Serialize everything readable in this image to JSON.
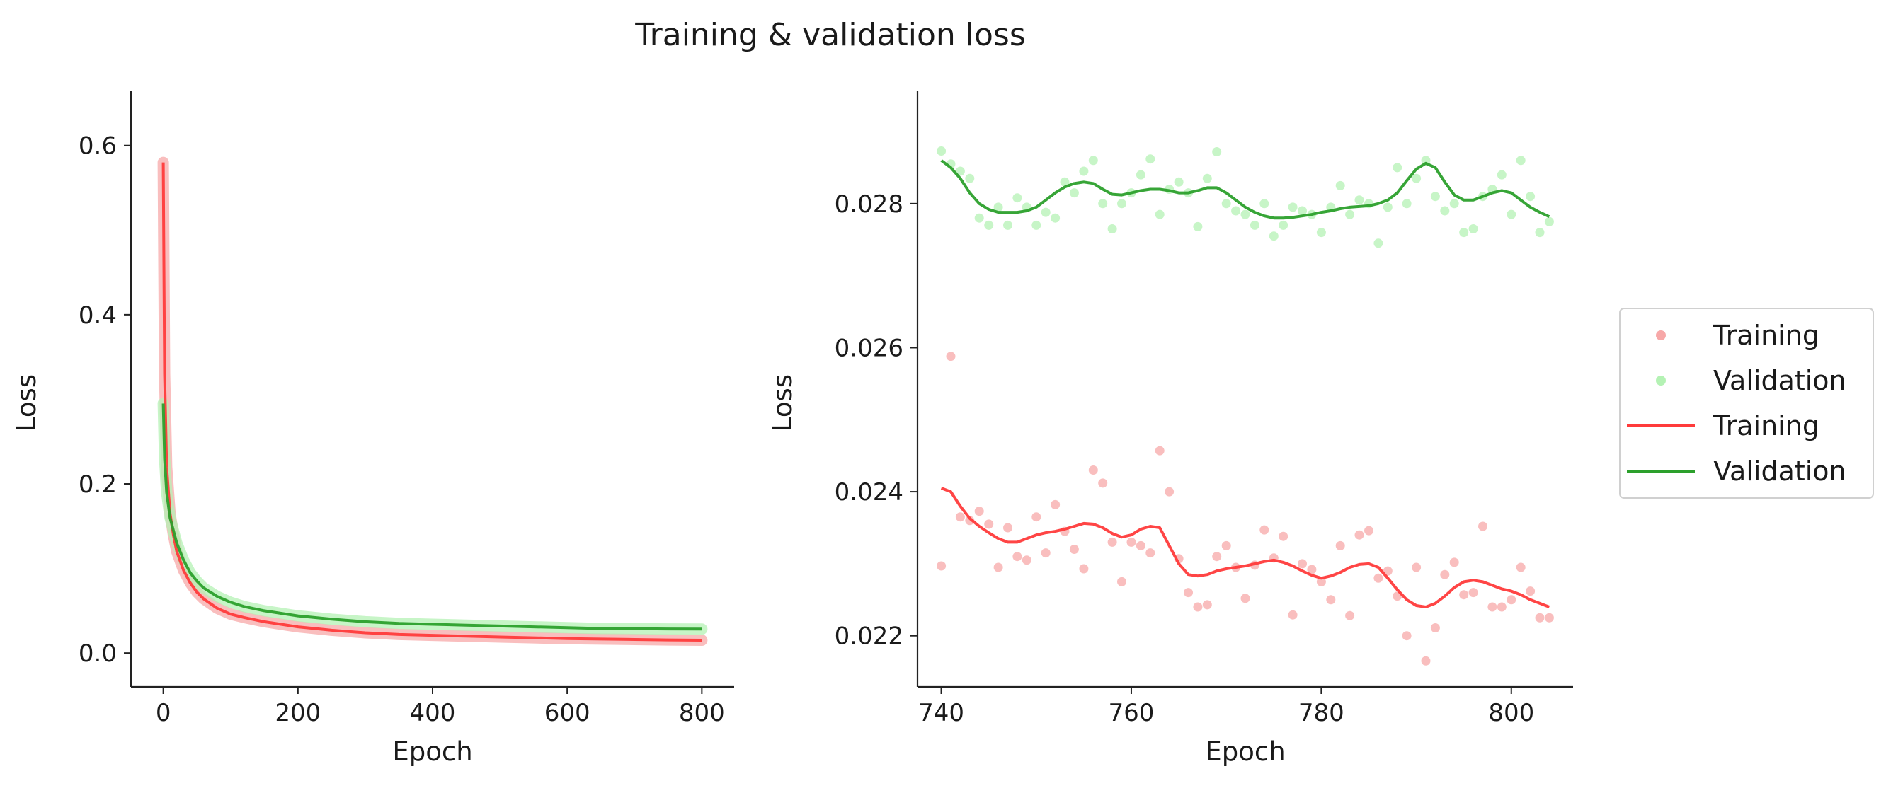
{
  "title": "Training & validation loss",
  "colors": {
    "training_line": "#ff3b3b",
    "validation_line": "#2ca02c",
    "training_marker": "#f7a8a8",
    "validation_marker": "#b4f2b4",
    "axis": "#222222"
  },
  "legend": {
    "entries": [
      {
        "label": "Training",
        "kind": "marker",
        "color_key": "training_marker"
      },
      {
        "label": "Validation",
        "kind": "marker",
        "color_key": "validation_marker"
      },
      {
        "label": "Training",
        "kind": "line",
        "color_key": "training_line"
      },
      {
        "label": "Validation",
        "kind": "line",
        "color_key": "validation_line"
      }
    ]
  },
  "chart_data": [
    {
      "type": "line",
      "title": "",
      "xlabel": "Epoch",
      "ylabel": "Loss",
      "xlim": [
        -48,
        848
      ],
      "ylim": [
        -0.04,
        0.665
      ],
      "xticks": [
        0,
        200,
        400,
        600,
        800
      ],
      "xtick_labels": [
        "0",
        "200",
        "400",
        "600",
        "800"
      ],
      "yticks": [
        0.0,
        0.2,
        0.4,
        0.6
      ],
      "ytick_labels": [
        "0.0",
        "0.2",
        "0.4",
        "0.6"
      ],
      "grid": false,
      "series": [
        {
          "name": "Training",
          "style": "line",
          "x": [
            0,
            2,
            5,
            10,
            15,
            20,
            30,
            40,
            50,
            60,
            80,
            100,
            120,
            150,
            200,
            250,
            300,
            350,
            400,
            450,
            500,
            550,
            600,
            650,
            700,
            750,
            800
          ],
          "y": [
            0.58,
            0.33,
            0.22,
            0.165,
            0.14,
            0.12,
            0.098,
            0.083,
            0.072,
            0.064,
            0.053,
            0.046,
            0.042,
            0.037,
            0.031,
            0.027,
            0.024,
            0.022,
            0.021,
            0.02,
            0.019,
            0.018,
            0.017,
            0.0165,
            0.016,
            0.0155,
            0.0152
          ]
        },
        {
          "name": "Validation",
          "style": "line",
          "x": [
            0,
            2,
            5,
            10,
            15,
            20,
            30,
            40,
            50,
            60,
            80,
            100,
            120,
            150,
            200,
            250,
            300,
            350,
            400,
            450,
            500,
            550,
            600,
            650,
            700,
            750,
            800
          ],
          "y": [
            0.295,
            0.23,
            0.19,
            0.16,
            0.145,
            0.13,
            0.11,
            0.095,
            0.085,
            0.077,
            0.067,
            0.06,
            0.055,
            0.05,
            0.044,
            0.04,
            0.037,
            0.035,
            0.034,
            0.033,
            0.032,
            0.031,
            0.03,
            0.029,
            0.0288,
            0.0285,
            0.0283
          ]
        }
      ]
    },
    {
      "type": "line",
      "title": "",
      "xlabel": "Epoch",
      "ylabel": "Loss",
      "xlim": [
        737.5,
        806.5
      ],
      "ylim": [
        0.02129,
        0.02957
      ],
      "xticks": [
        740,
        760,
        780,
        800
      ],
      "xtick_labels": [
        "740",
        "760",
        "780",
        "800"
      ],
      "yticks": [
        0.022,
        0.024,
        0.026,
        0.028
      ],
      "ytick_labels": [
        "0.022",
        "0.024",
        "0.026",
        "0.028"
      ],
      "grid": false,
      "series": [
        {
          "name": "Training",
          "style": "scatter",
          "x": [
            740,
            741,
            742,
            743,
            744,
            745,
            746,
            747,
            748,
            749,
            750,
            751,
            752,
            753,
            754,
            755,
            756,
            757,
            758,
            759,
            760,
            761,
            762,
            763,
            764,
            765,
            766,
            767,
            768,
            769,
            770,
            771,
            772,
            773,
            774,
            775,
            776,
            777,
            778,
            779,
            780,
            781,
            782,
            783,
            784,
            785,
            786,
            787,
            788,
            789,
            790,
            791,
            792,
            793,
            794,
            795,
            796,
            797,
            798,
            799,
            800,
            801,
            802,
            803,
            804
          ],
          "y": [
            0.02297,
            0.02588,
            0.02365,
            0.0236,
            0.02373,
            0.02355,
            0.02295,
            0.0235,
            0.0231,
            0.02305,
            0.02365,
            0.02315,
            0.02382,
            0.02345,
            0.0232,
            0.02293,
            0.0243,
            0.02412,
            0.0233,
            0.02275,
            0.0233,
            0.02325,
            0.02315,
            0.02457,
            0.024,
            0.02307,
            0.0226,
            0.0224,
            0.02243,
            0.0231,
            0.02325,
            0.02295,
            0.02252,
            0.02298,
            0.02347,
            0.02308,
            0.02338,
            0.02229,
            0.023,
            0.02292,
            0.02275,
            0.0225,
            0.02325,
            0.02228,
            0.0234,
            0.02346,
            0.0228,
            0.0229,
            0.02255,
            0.022,
            0.02295,
            0.02165,
            0.02211,
            0.02285,
            0.02302,
            0.02257,
            0.0226,
            0.02352,
            0.0224,
            0.0224,
            0.0225,
            0.02295,
            0.02262,
            0.02225,
            0.02225
          ]
        },
        {
          "name": "Validation",
          "style": "scatter",
          "x": [
            740,
            741,
            742,
            743,
            744,
            745,
            746,
            747,
            748,
            749,
            750,
            751,
            752,
            753,
            754,
            755,
            756,
            757,
            758,
            759,
            760,
            761,
            762,
            763,
            764,
            765,
            766,
            767,
            768,
            769,
            770,
            771,
            772,
            773,
            774,
            775,
            776,
            777,
            778,
            779,
            780,
            781,
            782,
            783,
            784,
            785,
            786,
            787,
            788,
            789,
            790,
            791,
            792,
            793,
            794,
            795,
            796,
            797,
            798,
            799,
            800,
            801,
            802,
            803,
            804
          ],
          "y": [
            0.02873,
            0.02855,
            0.02845,
            0.02835,
            0.0278,
            0.0277,
            0.02795,
            0.0277,
            0.02808,
            0.02795,
            0.0277,
            0.02788,
            0.0278,
            0.0283,
            0.02815,
            0.02845,
            0.0286,
            0.028,
            0.02765,
            0.028,
            0.02815,
            0.0284,
            0.02862,
            0.02785,
            0.0282,
            0.0283,
            0.02815,
            0.02768,
            0.02835,
            0.02872,
            0.028,
            0.0279,
            0.02785,
            0.0277,
            0.028,
            0.02755,
            0.0277,
            0.02795,
            0.0279,
            0.02785,
            0.0276,
            0.02795,
            0.02825,
            0.02785,
            0.02805,
            0.028,
            0.02745,
            0.02795,
            0.0285,
            0.028,
            0.02835,
            0.0286,
            0.0281,
            0.0279,
            0.028,
            0.0276,
            0.02765,
            0.0281,
            0.0282,
            0.0284,
            0.02785,
            0.0286,
            0.0281,
            0.0276,
            0.02775
          ]
        },
        {
          "name": "Training",
          "style": "line",
          "x": [
            740,
            741,
            742,
            743,
            744,
            745,
            746,
            747,
            748,
            749,
            750,
            751,
            752,
            753,
            754,
            755,
            756,
            757,
            758,
            759,
            760,
            761,
            762,
            763,
            764,
            765,
            766,
            767,
            768,
            769,
            770,
            771,
            772,
            773,
            774,
            775,
            776,
            777,
            778,
            779,
            780,
            781,
            782,
            783,
            784,
            785,
            786,
            787,
            788,
            789,
            790,
            791,
            792,
            793,
            794,
            795,
            796,
            797,
            798,
            799,
            800,
            801,
            802,
            803,
            804
          ],
          "y": [
            0.02405,
            0.024,
            0.0238,
            0.02363,
            0.02352,
            0.02343,
            0.02335,
            0.0233,
            0.0233,
            0.02335,
            0.0234,
            0.02343,
            0.02345,
            0.02348,
            0.02352,
            0.02356,
            0.02355,
            0.0235,
            0.02342,
            0.02337,
            0.0234,
            0.02348,
            0.02352,
            0.0235,
            0.02325,
            0.023,
            0.02285,
            0.02283,
            0.02285,
            0.0229,
            0.02293,
            0.02295,
            0.02297,
            0.023,
            0.02303,
            0.02305,
            0.02302,
            0.02297,
            0.0229,
            0.02284,
            0.0228,
            0.02283,
            0.02288,
            0.02295,
            0.02299,
            0.023,
            0.02295,
            0.0228,
            0.02264,
            0.0225,
            0.02242,
            0.0224,
            0.02245,
            0.02255,
            0.02267,
            0.02275,
            0.02277,
            0.02275,
            0.0227,
            0.02265,
            0.02262,
            0.02257,
            0.0225,
            0.02245,
            0.0224
          ]
        },
        {
          "name": "Validation",
          "style": "line",
          "x": [
            740,
            741,
            742,
            743,
            744,
            745,
            746,
            747,
            748,
            749,
            750,
            751,
            752,
            753,
            754,
            755,
            756,
            757,
            758,
            759,
            760,
            761,
            762,
            763,
            764,
            765,
            766,
            767,
            768,
            769,
            770,
            771,
            772,
            773,
            774,
            775,
            776,
            777,
            778,
            779,
            780,
            781,
            782,
            783,
            784,
            785,
            786,
            787,
            788,
            789,
            790,
            791,
            792,
            793,
            794,
            795,
            796,
            797,
            798,
            799,
            800,
            801,
            802,
            803,
            804
          ],
          "y": [
            0.0286,
            0.0285,
            0.02835,
            0.02815,
            0.028,
            0.02792,
            0.02788,
            0.02788,
            0.02788,
            0.0279,
            0.02795,
            0.02805,
            0.02815,
            0.02823,
            0.02828,
            0.0283,
            0.02828,
            0.0282,
            0.02813,
            0.02812,
            0.02815,
            0.02818,
            0.0282,
            0.0282,
            0.02818,
            0.02815,
            0.02815,
            0.02818,
            0.02822,
            0.02822,
            0.02815,
            0.02805,
            0.02795,
            0.02788,
            0.02783,
            0.0278,
            0.0278,
            0.02781,
            0.02783,
            0.02785,
            0.02788,
            0.0279,
            0.02793,
            0.02795,
            0.02796,
            0.02797,
            0.028,
            0.02805,
            0.02815,
            0.02832,
            0.02848,
            0.02856,
            0.0285,
            0.0283,
            0.02812,
            0.02805,
            0.02805,
            0.0281,
            0.02815,
            0.02818,
            0.02815,
            0.02805,
            0.02795,
            0.02788,
            0.02782
          ]
        }
      ]
    }
  ]
}
